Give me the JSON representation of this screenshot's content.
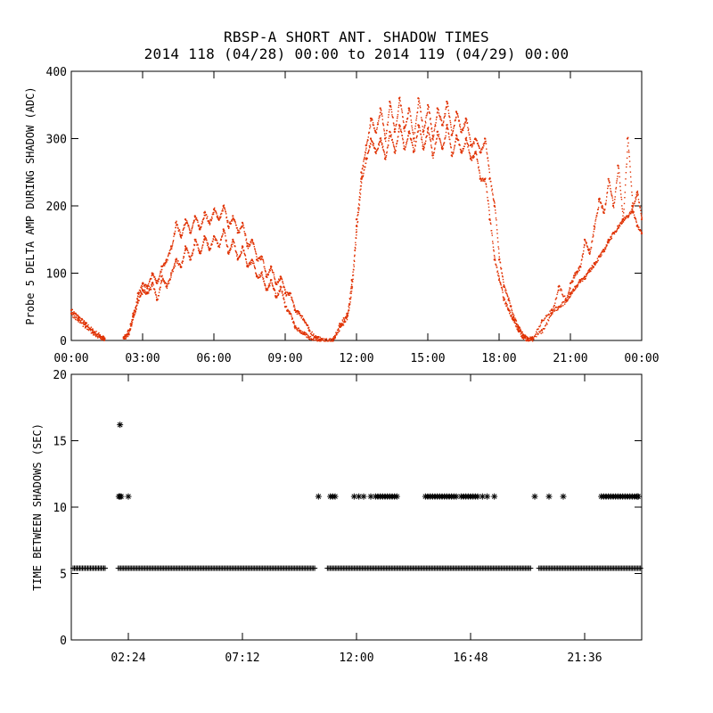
{
  "title_line1": "RBSP-A SHORT ANT. SHADOW TIMES",
  "title_line2": "2014 118 (04/28) 00:00 to 2014 119 (04/29) 00:00",
  "colors": {
    "trace": "#e03000",
    "axis": "#000000",
    "marker": "#000000"
  },
  "chart_data": [
    {
      "type": "scatter",
      "title": "Probe 5 delta amplitude during shadow",
      "ylabel": "Probe 5 DELTA AMP DURING SHADOW (ADC)",
      "xlabel": "",
      "xlim": [
        0,
        24
      ],
      "ylim": [
        0,
        400
      ],
      "x_ticks": [
        0,
        3,
        6,
        9,
        12,
        15,
        18,
        21,
        24
      ],
      "x_tick_labels": [
        "00:00",
        "03:00",
        "06:00",
        "09:00",
        "12:00",
        "15:00",
        "18:00",
        "21:00",
        "00:00"
      ],
      "y_ticks": [
        0,
        100,
        200,
        300,
        400
      ],
      "y_tick_labels": [
        "0",
        "100",
        "200",
        "300",
        "400"
      ],
      "series": [
        {
          "name": "upper_branch",
          "x": [
            0.0,
            0.3,
            0.6,
            0.9,
            1.2,
            1.4,
            2.2,
            2.4,
            2.6,
            2.8,
            3.0,
            3.2,
            3.4,
            3.6,
            3.8,
            4.0,
            4.2,
            4.4,
            4.6,
            4.8,
            5.0,
            5.2,
            5.4,
            5.6,
            5.8,
            6.0,
            6.2,
            6.4,
            6.6,
            6.8,
            7.0,
            7.2,
            7.4,
            7.6,
            7.8,
            8.0,
            8.2,
            8.4,
            8.6,
            8.8,
            9.0,
            9.2,
            9.4,
            9.6,
            9.8,
            10.0,
            10.3,
            10.5,
            11.0,
            11.3,
            11.6,
            11.8,
            12.0,
            12.2,
            12.4,
            12.6,
            12.8,
            13.0,
            13.2,
            13.4,
            13.6,
            13.8,
            14.0,
            14.2,
            14.4,
            14.6,
            14.8,
            15.0,
            15.2,
            15.4,
            15.6,
            15.8,
            16.0,
            16.2,
            16.4,
            16.6,
            16.8,
            17.0,
            17.2,
            17.4,
            17.6,
            17.8,
            18.0,
            18.2,
            18.4,
            18.6,
            18.8,
            19.0,
            19.2,
            19.4,
            19.8,
            20.2,
            20.5,
            20.8,
            21.0,
            21.2,
            21.4,
            21.6,
            21.8,
            22.0,
            22.2,
            22.4,
            22.6,
            22.8,
            23.0,
            23.2,
            23.4,
            23.6,
            23.8,
            24.0
          ],
          "y": [
            45,
            35,
            25,
            15,
            8,
            3,
            5,
            15,
            40,
            70,
            85,
            80,
            100,
            85,
            110,
            120,
            140,
            175,
            155,
            180,
            160,
            185,
            165,
            190,
            175,
            195,
            180,
            200,
            170,
            185,
            160,
            175,
            140,
            150,
            120,
            125,
            95,
            110,
            85,
            95,
            70,
            70,
            45,
            40,
            30,
            15,
            5,
            2,
            2,
            25,
            40,
            90,
            180,
            250,
            290,
            330,
            310,
            345,
            300,
            355,
            310,
            360,
            315,
            345,
            300,
            360,
            310,
            350,
            300,
            345,
            320,
            355,
            305,
            340,
            310,
            330,
            290,
            300,
            280,
            300,
            240,
            200,
            120,
            80,
            60,
            35,
            20,
            8,
            3,
            5,
            15,
            40,
            80,
            60,
            85,
            100,
            110,
            150,
            130,
            170,
            210,
            190,
            240,
            200,
            260,
            180,
            300,
            200,
            220,
            180
          ]
        },
        {
          "name": "lower_branch",
          "x": [
            0.0,
            0.3,
            0.6,
            0.9,
            1.2,
            1.4,
            2.2,
            2.4,
            2.6,
            2.8,
            3.0,
            3.2,
            3.4,
            3.6,
            3.8,
            4.0,
            4.2,
            4.4,
            4.6,
            4.8,
            5.0,
            5.2,
            5.4,
            5.6,
            5.8,
            6.0,
            6.2,
            6.4,
            6.6,
            6.8,
            7.0,
            7.2,
            7.4,
            7.6,
            7.8,
            8.0,
            8.2,
            8.4,
            8.6,
            8.8,
            9.0,
            9.2,
            9.4,
            9.6,
            9.8,
            10.0,
            10.3,
            10.5,
            11.0,
            11.3,
            11.6,
            11.8,
            12.0,
            12.2,
            12.4,
            12.6,
            12.8,
            13.0,
            13.2,
            13.4,
            13.6,
            13.8,
            14.0,
            14.2,
            14.4,
            14.6,
            14.8,
            15.0,
            15.2,
            15.4,
            15.6,
            15.8,
            16.0,
            16.2,
            16.4,
            16.6,
            16.8,
            17.0,
            17.2,
            17.4,
            17.6,
            17.8,
            18.0,
            18.2,
            18.4,
            18.6,
            18.8,
            19.0,
            19.2,
            19.4,
            19.8,
            20.2,
            20.5,
            20.8,
            21.0,
            21.2,
            21.4,
            21.6,
            21.8,
            22.0,
            22.2,
            22.4,
            22.6,
            22.8,
            23.0,
            23.2,
            23.4,
            23.6,
            23.8,
            24.0
          ],
          "y": [
            40,
            30,
            20,
            12,
            5,
            2,
            3,
            10,
            35,
            60,
            75,
            70,
            85,
            60,
            95,
            80,
            100,
            120,
            110,
            140,
            120,
            150,
            130,
            155,
            135,
            155,
            140,
            165,
            130,
            150,
            120,
            140,
            110,
            120,
            95,
            100,
            75,
            90,
            65,
            80,
            50,
            40,
            20,
            15,
            10,
            5,
            3,
            1,
            1,
            20,
            35,
            80,
            170,
            240,
            270,
            300,
            280,
            300,
            270,
            310,
            280,
            320,
            285,
            310,
            280,
            320,
            285,
            315,
            275,
            310,
            285,
            320,
            275,
            305,
            280,
            300,
            270,
            280,
            240,
            240,
            180,
            120,
            90,
            60,
            45,
            30,
            15,
            5,
            2,
            3,
            30,
            45,
            50,
            60,
            70,
            80,
            90,
            95,
            105,
            115,
            125,
            135,
            150,
            160,
            170,
            180,
            185,
            195,
            170,
            160
          ]
        }
      ]
    },
    {
      "type": "scatter",
      "title": "Time between shadows",
      "ylabel": "TIME BETWEEN SHADOWS (SEC)",
      "xlabel": "",
      "xlim": [
        0,
        24
      ],
      "ylim": [
        0,
        20
      ],
      "x_ticks": [
        2.4,
        7.2,
        12.0,
        16.8,
        21.6
      ],
      "x_tick_labels": [
        "02:24",
        "07:12",
        "12:00",
        "16:48",
        "21:36"
      ],
      "y_ticks": [
        0,
        5,
        10,
        15,
        20
      ],
      "y_tick_labels": [
        "0",
        "5",
        "10",
        "15",
        "20"
      ],
      "baseline": {
        "y": 5.4,
        "ranges": [
          [
            0.0,
            1.5
          ],
          [
            1.9,
            10.3
          ],
          [
            10.7,
            19.4
          ],
          [
            19.6,
            24.0
          ]
        ]
      },
      "series": [
        {
          "name": "outliers",
          "x": [
            2.0,
            2.05,
            2.1,
            2.4,
            10.4,
            10.9,
            11.0,
            11.1,
            11.9,
            12.1,
            12.3,
            12.6,
            12.8,
            12.9,
            13.0,
            13.1,
            13.2,
            13.3,
            13.4,
            13.5,
            13.6,
            13.7,
            14.9,
            15.0,
            15.1,
            15.2,
            15.3,
            15.4,
            15.5,
            15.6,
            15.7,
            15.8,
            15.9,
            16.0,
            16.1,
            16.2,
            16.4,
            16.5,
            16.6,
            16.7,
            16.8,
            16.9,
            17.0,
            17.1,
            17.3,
            17.5,
            17.8,
            19.5,
            20.1,
            20.7,
            22.3,
            22.4,
            22.5,
            22.6,
            22.7,
            22.8,
            22.9,
            23.0,
            23.1,
            23.2,
            23.3,
            23.4,
            23.5,
            23.6,
            23.7,
            23.8,
            23.9,
            24.0,
            2.05
          ],
          "y": [
            10.8,
            10.8,
            10.8,
            10.8,
            10.8,
            10.8,
            10.8,
            10.8,
            10.8,
            10.8,
            10.8,
            10.8,
            10.8,
            10.8,
            10.8,
            10.8,
            10.8,
            10.8,
            10.8,
            10.8,
            10.8,
            10.8,
            10.8,
            10.8,
            10.8,
            10.8,
            10.8,
            10.8,
            10.8,
            10.8,
            10.8,
            10.8,
            10.8,
            10.8,
            10.8,
            10.8,
            10.8,
            10.8,
            10.8,
            10.8,
            10.8,
            10.8,
            10.8,
            10.8,
            10.8,
            10.8,
            10.8,
            10.8,
            10.8,
            10.8,
            10.8,
            10.8,
            10.8,
            10.8,
            10.8,
            10.8,
            10.8,
            10.8,
            10.8,
            10.8,
            10.8,
            10.8,
            10.8,
            10.8,
            10.8,
            10.8,
            10.8,
            10.8,
            16.2
          ]
        }
      ]
    }
  ]
}
